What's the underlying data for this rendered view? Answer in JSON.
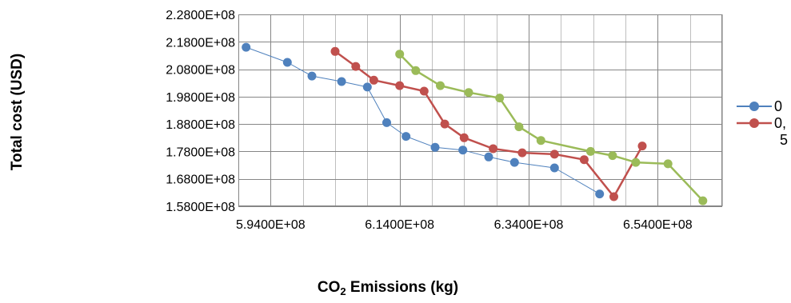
{
  "chart_data": {
    "type": "line",
    "title": "",
    "xlabel_main": "CO",
    "xlabel_sub": "2",
    "xlabel_rest": " Emissions (kg)",
    "ylabel": "Total cost (USD)",
    "xlim": [
      589000000,
      664000000
    ],
    "ylim": [
      158000000,
      228000000
    ],
    "x_ticks": [
      594000000,
      614000000,
      634000000,
      654000000
    ],
    "x_tick_labels": [
      "5.9400E+08",
      "6.1400E+08",
      "6.3400E+08",
      "6.5400E+08"
    ],
    "y_ticks": [
      158000000,
      168000000,
      178000000,
      188000000,
      198000000,
      208000000,
      218000000,
      228000000
    ],
    "y_tick_labels": [
      "1.5800E+08",
      "1.6800E+08",
      "1.7800E+08",
      "1.8800E+08",
      "1.9800E+08",
      "2.0800E+08",
      "2.1800E+08",
      "2.2800E+08"
    ],
    "grid": true,
    "legend_position": "right",
    "series": [
      {
        "name": "0",
        "color": "#4f81bd",
        "line_width": 1,
        "x": [
          590200000,
          596600000,
          600400000,
          605000000,
          609000000,
          612000000,
          615000000,
          619500000,
          623800000,
          627800000,
          631800000,
          638000000,
          645000000
        ],
        "y": [
          216000000,
          210500000,
          205500000,
          203500000,
          201500000,
          188500000,
          183500000,
          179500000,
          178500000,
          176000000,
          174000000,
          172000000,
          162500000
        ]
      },
      {
        "name": "0, 5",
        "color": "#c0504d",
        "line_width": 2.5,
        "x": [
          604000000,
          607200000,
          610000000,
          614000000,
          617800000,
          621000000,
          624000000,
          628500000,
          633000000,
          638000000,
          642600000,
          647200000,
          651600000
        ],
        "y": [
          214500000,
          209000000,
          204000000,
          202000000,
          200000000,
          188000000,
          183000000,
          179000000,
          177500000,
          177000000,
          175000000,
          161500000,
          180000000
        ]
      },
      {
        "name": "",
        "color": "#9bbb59",
        "line_width": 2.5,
        "x": [
          614000000,
          616500000,
          620300000,
          624700000,
          629500000,
          632500000,
          635900000,
          643600000,
          647000000,
          650600000,
          655600000,
          661000000
        ],
        "y": [
          213500000,
          207500000,
          202000000,
          199500000,
          197500000,
          187000000,
          182000000,
          178000000,
          176500000,
          174000000,
          173500000,
          160000000
        ]
      }
    ]
  }
}
